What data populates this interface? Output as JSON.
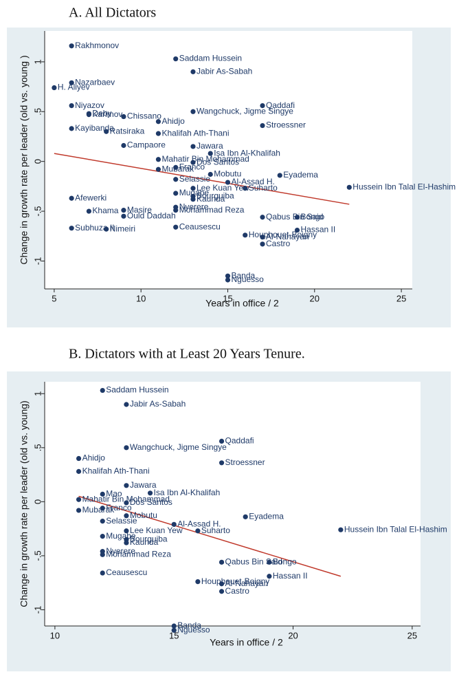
{
  "chart_data": [
    {
      "type": "scatter",
      "title": "A. All Dictators",
      "x_label": "Years in office / 2",
      "y_label": "Change in growth rate per leader (old vs. young )",
      "xlim": [
        4.45,
        25.63
      ],
      "ylim": [
        -1.28,
        1.31
      ],
      "xticks": [
        5,
        10,
        15,
        20,
        25
      ],
      "yticks": [
        {
          "value": 1,
          "label": "1"
        },
        {
          "value": 0.5,
          "label": ".5"
        },
        0,
        {
          "value": -0.5,
          "label": "-.5"
        },
        -1
      ],
      "color": "#1f3a68",
      "line_color": "#c0392b",
      "labels": [
        "Rakhmonov",
        "Saddam Hussein",
        "Jabir As-Sabah",
        "Nazarbaev",
        "H. Aliyev",
        "Niyazov",
        "Deby",
        "Karimov",
        "Chissano",
        "Ahidjo",
        "Wangchuck, Jigme Singye",
        "Qaddafi",
        "Stroessner",
        "Kayibanda",
        "Ratsiraka",
        "Khalifah Ath-Thani",
        "Campaore",
        "Jawara",
        "Isa Ibn Al-Khalifah",
        "Mahatir Bin Mohammad",
        "Dos Santos",
        "Franco",
        "Mubarak",
        "Mobutu",
        "Selassie",
        "Al-Assad H.",
        "Eyadema",
        "Lee Kuan Yew",
        "Suharto",
        "Hussein Ibn Talal El-Hashim",
        "Mugabe",
        "Bourguiba",
        "Kaunda",
        "Nyerere",
        "Mohammad Reza",
        "Afewerki",
        "Khama",
        "Masire",
        "Ould Daddah",
        "Qabus Bin Said",
        "Bongo",
        "Hassan II",
        "Subhuza II",
        "Nimeiri",
        "Ceausescu",
        "Houphouet-Boigny",
        "Al-Nahayan",
        "Castro",
        "Banda",
        "Nguesso"
      ],
      "x": [
        6,
        12,
        13,
        6,
        5,
        6,
        7,
        7,
        9,
        11,
        13,
        17,
        17,
        6,
        8,
        11,
        9,
        13,
        14,
        11,
        13,
        12,
        11,
        14,
        12,
        15,
        18,
        13,
        16,
        22,
        12,
        13,
        13,
        12,
        12,
        6,
        7,
        9,
        9,
        17,
        19,
        19,
        6,
        8,
        12,
        16,
        17,
        17,
        15,
        15
      ],
      "values": [
        1.16,
        1.03,
        0.9,
        0.79,
        0.74,
        0.56,
        0.48,
        0.47,
        0.45,
        0.4,
        0.5,
        0.56,
        0.36,
        0.33,
        0.3,
        0.28,
        0.16,
        0.15,
        0.08,
        0.02,
        -0.01,
        -0.06,
        -0.08,
        -0.13,
        -0.18,
        -0.21,
        -0.14,
        -0.27,
        -0.27,
        -0.26,
        -0.32,
        -0.35,
        -0.38,
        -0.46,
        -0.49,
        -0.37,
        -0.5,
        -0.49,
        -0.55,
        -0.56,
        -0.56,
        -0.69,
        -0.67,
        -0.68,
        -0.66,
        -0.74,
        -0.76,
        -0.83,
        -1.15,
        -1.19
      ],
      "fit": {
        "x": [
          5,
          22
        ],
        "values": [
          0.08,
          -0.43
        ]
      }
    },
    {
      "type": "scatter",
      "title": "B. Dictators with at Least 20 Years Tenure.",
      "x_label": "Years in office / 2",
      "y_label": "Change in growth rate per leader (old vs. young)",
      "xlim": [
        9.57,
        25.35
      ],
      "ylim": [
        -1.15,
        1.11
      ],
      "xticks": [
        10,
        15,
        20,
        25
      ],
      "yticks": [
        {
          "value": 1,
          "label": "1"
        },
        {
          "value": 0.5,
          "label": ".5"
        },
        0,
        {
          "value": -0.5,
          "label": "-.5"
        },
        -1
      ],
      "color": "#1f3a68",
      "line_color": "#c0392b",
      "labels": [
        "Saddam Hussein",
        "Jabir As-Sabah",
        "Wangchuck, Jigme Singye",
        "Qaddafi",
        "Ahidjo",
        "Stroessner",
        "Khalifah Ath-Thani",
        "Jawara",
        "Mao",
        "Isa Ibn Al-Khalifah",
        "Mahatir Bin Mohammad",
        "Dos Santos",
        "Mubarak",
        "Franco",
        "Mobutu",
        "Selassie",
        "Al-Assad H.",
        "Eyadema",
        "Lee Kuan Yew",
        "Suharto",
        "Hussein Ibn Talal El-Hashim",
        "Mugabe",
        "Bourguiba",
        "Kaunda",
        "Nyerere",
        "Mohammad Reza",
        "Qabus Bin Said",
        "Bongo",
        "Hassan II",
        "Ceausescu",
        "Houphouet-Boigny",
        "Al-Nahayan",
        "Castro",
        "Banda",
        "Nguesso"
      ],
      "x": [
        12,
        13,
        13,
        17,
        11,
        17,
        11,
        13,
        12,
        14,
        11,
        13,
        11,
        12,
        13,
        12,
        15,
        18,
        13,
        16,
        22,
        12,
        13,
        13,
        12,
        12,
        17,
        19,
        19,
        12,
        16,
        17,
        17,
        15,
        15
      ],
      "values": [
        1.03,
        0.9,
        0.5,
        0.56,
        0.4,
        0.36,
        0.28,
        0.15,
        0.07,
        0.08,
        0.02,
        -0.01,
        -0.08,
        -0.06,
        -0.13,
        -0.18,
        -0.21,
        -0.14,
        -0.27,
        -0.27,
        -0.26,
        -0.32,
        -0.35,
        -0.38,
        -0.46,
        -0.49,
        -0.56,
        -0.56,
        -0.69,
        -0.66,
        -0.74,
        -0.76,
        -0.83,
        -1.15,
        -1.19
      ],
      "fit": {
        "x": [
          11,
          22
        ],
        "values": [
          0.05,
          -0.69
        ]
      }
    }
  ]
}
